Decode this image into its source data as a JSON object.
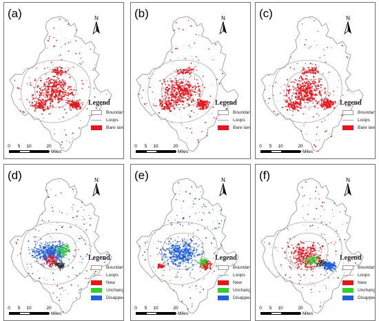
{
  "panels": [
    {
      "label": "(a)",
      "legend": {
        "title": "Legend",
        "items": [
          {
            "name": "Boundary",
            "type": "outline"
          },
          {
            "name": "Loops",
            "type": "line"
          },
          {
            "name": "Bare land",
            "type": "fill",
            "color": "#e8141b"
          }
        ]
      },
      "scale": {
        "ticks": [
          "0",
          "5",
          "10",
          "20"
        ],
        "unit": "Miles"
      },
      "north": "N"
    },
    {
      "label": "(b)",
      "legend": {
        "title": "Legend",
        "items": [
          {
            "name": "Boundary",
            "type": "outline"
          },
          {
            "name": "Loops",
            "type": "line"
          },
          {
            "name": "Bare land",
            "type": "fill",
            "color": "#e8141b"
          }
        ]
      },
      "scale": {
        "ticks": [
          "0",
          "5",
          "10",
          "20"
        ],
        "unit": "Miles"
      },
      "north": "N"
    },
    {
      "label": "(c)",
      "legend": {
        "title": "Legend",
        "items": [
          {
            "name": "Boundary",
            "type": "outline"
          },
          {
            "name": "Loops",
            "type": "line"
          },
          {
            "name": "Bare land",
            "type": "fill",
            "color": "#e8141b"
          }
        ]
      },
      "scale": {
        "ticks": [
          "0",
          "5",
          "10",
          "20"
        ],
        "unit": "Miles"
      },
      "north": "N"
    },
    {
      "label": "(d)",
      "legend": {
        "title": "Legend",
        "items": [
          {
            "name": "Boundary",
            "type": "outline"
          },
          {
            "name": "Loops",
            "type": "line"
          },
          {
            "name": "New",
            "type": "fill",
            "color": "#e8141b"
          },
          {
            "name": "Unchanged",
            "type": "fill",
            "color": "#2fd12a"
          },
          {
            "name": "Disappeared",
            "type": "fill",
            "color": "#1f5fe0"
          }
        ]
      },
      "scale": {
        "ticks": [
          "0",
          "5",
          "10",
          "20"
        ],
        "unit": "Miles"
      },
      "north": "N"
    },
    {
      "label": "(e)",
      "legend": {
        "title": "Legend",
        "items": [
          {
            "name": "Boundary",
            "type": "outline"
          },
          {
            "name": "Loops",
            "type": "line"
          },
          {
            "name": "New",
            "type": "fill",
            "color": "#e8141b"
          },
          {
            "name": "Unchanged",
            "type": "fill",
            "color": "#2fd12a"
          },
          {
            "name": "Disappeared",
            "type": "fill",
            "color": "#1f5fe0"
          }
        ]
      },
      "scale": {
        "ticks": [
          "0",
          "5",
          "10",
          "20"
        ],
        "unit": "Miles"
      },
      "north": "N"
    },
    {
      "label": "(f)",
      "legend": {
        "title": "Legend",
        "items": [
          {
            "name": "Boundary",
            "type": "outline"
          },
          {
            "name": "Loops",
            "type": "line"
          },
          {
            "name": "New",
            "type": "fill",
            "color": "#e8141b"
          },
          {
            "name": "Unchanged",
            "type": "fill",
            "color": "#2fd12a"
          },
          {
            "name": "Disappeared",
            "type": "fill",
            "color": "#1f5fe0"
          }
        ]
      },
      "scale": {
        "ticks": [
          "0",
          "5",
          "10",
          "20"
        ],
        "unit": "Miles"
      },
      "north": "N"
    }
  ],
  "colors": {
    "border": "#6f6f6f",
    "boundary": "#9a9a9a",
    "loops": "#a8a8a8",
    "bare_land": "#e8141b",
    "new": "#e8141b",
    "unchanged": "#2fd12a",
    "disappeared": "#1f5fe0"
  },
  "icons": {
    "north_arrow": "north-arrow-icon"
  }
}
